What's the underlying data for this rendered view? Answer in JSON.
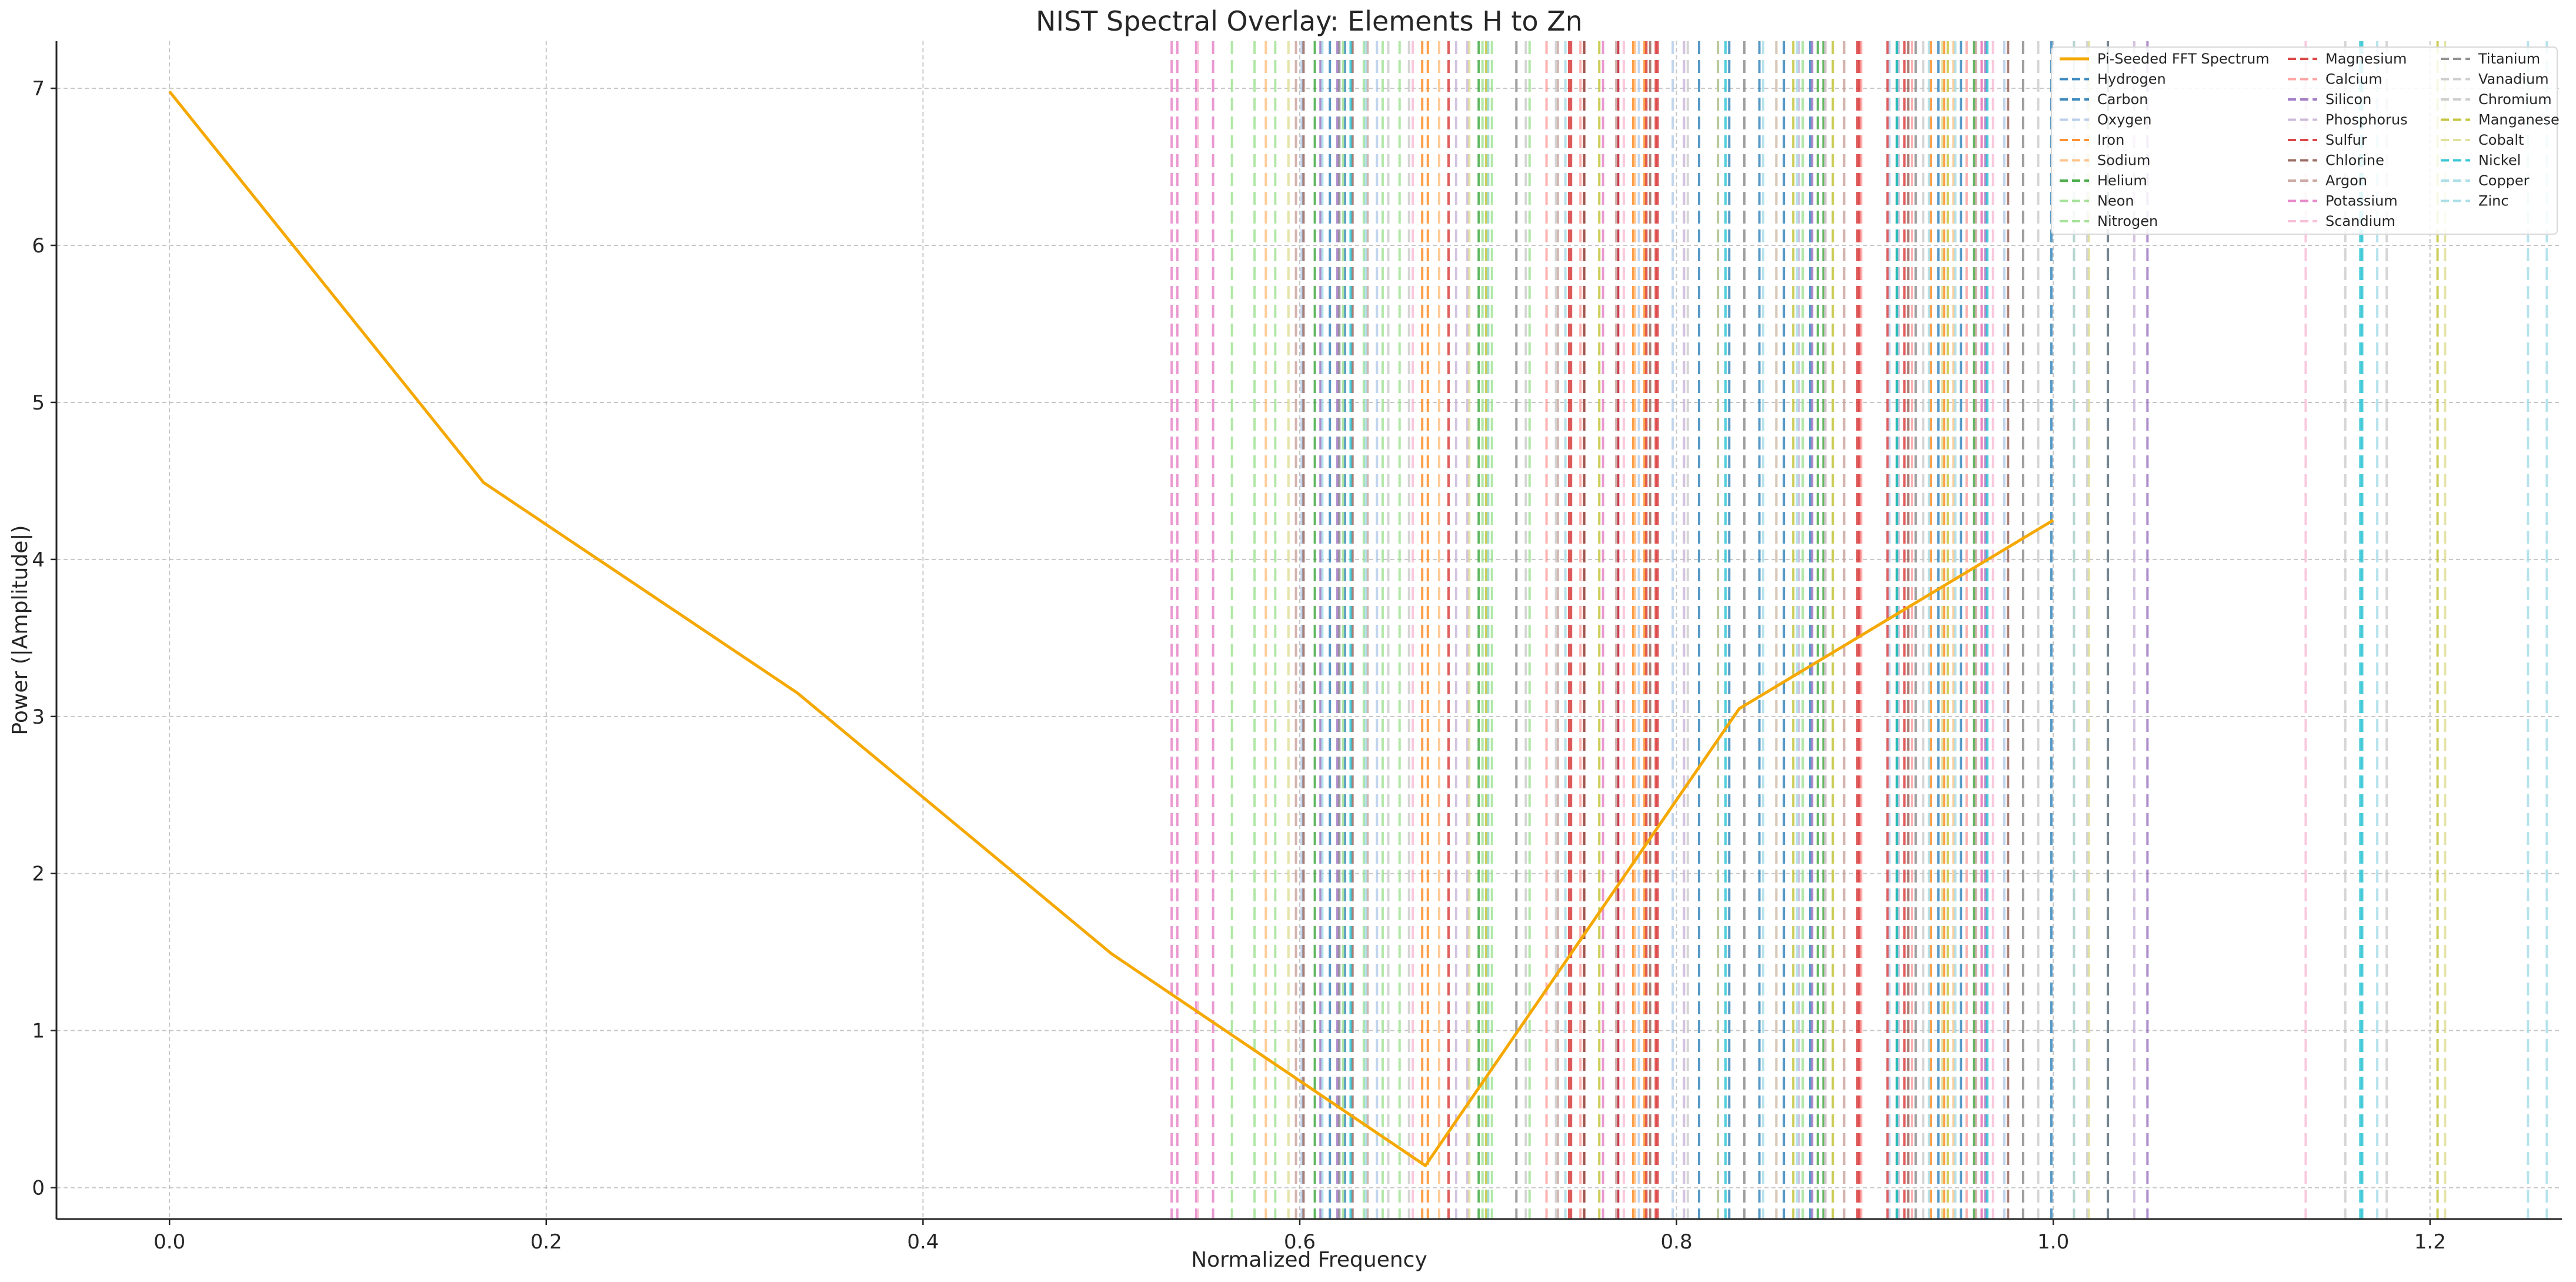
{
  "chart_data": {
    "type": "line",
    "title": "NIST Spectral Overlay: Elements H to Zn",
    "xlabel": "Normalized Frequency",
    "ylabel": "Power (|Amplitude|)",
    "xlim": [
      -0.06,
      1.27
    ],
    "ylim": [
      -0.2,
      7.3
    ],
    "xticks": [
      "0.0",
      "0.2",
      "0.4",
      "0.6",
      "0.8",
      "1.0",
      "1.2"
    ],
    "yticks": [
      "0",
      "1",
      "2",
      "3",
      "4",
      "5",
      "6",
      "7"
    ],
    "grid": true,
    "legend_position": "top-right",
    "spectrum": {
      "name": "Pi-Seeded FFT Spectrum",
      "color": "#f5a800",
      "x": [
        0.0,
        0.1667,
        0.3333,
        0.5,
        0.6667,
        0.8333,
        1.0
      ],
      "y": [
        6.98,
        4.49,
        3.15,
        1.49,
        0.14,
        3.05,
        4.25
      ]
    },
    "elements": [
      {
        "name": "Hydrogen",
        "color": "#1f77b4",
        "lines": [
          0.624,
          0.812,
          0.844,
          0.857,
          0.951,
          0.999
        ]
      },
      {
        "name": "Carbon",
        "color": "#1f77b4",
        "lines": [
          0.616,
          0.822,
          0.828,
          0.871,
          0.939,
          1.029
        ]
      },
      {
        "name": "Oxygen",
        "color": "#aec7e8",
        "lines": [
          0.601,
          0.641,
          0.78,
          0.798,
          0.913,
          0.974
        ]
      },
      {
        "name": "Iron",
        "color": "#ff7f0e",
        "lines": [
          0.665,
          0.668,
          0.777,
          0.783,
          0.935,
          0.942
        ]
      },
      {
        "name": "Sodium",
        "color": "#ffbb78",
        "lines": [
          0.582,
          0.674,
          0.778,
          0.853,
          0.947,
          1.011
        ]
      },
      {
        "name": "Helium",
        "color": "#2ca02c",
        "lines": [
          0.608,
          0.695,
          0.875,
          0.878,
          0.917,
          0.958
        ]
      },
      {
        "name": "Neon",
        "color": "#98df8a",
        "lines": [
          0.564,
          0.587,
          0.634,
          0.697,
          0.7,
          0.722
        ]
      },
      {
        "name": "Nitrogen",
        "color": "#98df8a",
        "lines": [
          0.576,
          0.623,
          0.644,
          0.653,
          0.702,
          0.867
        ]
      },
      {
        "name": "Magnesium",
        "color": "#d62728",
        "lines": [
          0.743,
          0.751,
          0.784,
          0.789,
          0.896,
          0.912
        ]
      },
      {
        "name": "Calcium",
        "color": "#ff9896",
        "lines": [
          0.731,
          0.749,
          0.898,
          0.925,
          0.954,
          0.962
        ]
      },
      {
        "name": "Silicon",
        "color": "#9467bd",
        "lines": [
          0.611,
          0.62,
          0.769,
          0.872,
          0.964,
          1.05
        ]
      },
      {
        "name": "Phosphorus",
        "color": "#c5b0d5",
        "lines": [
          0.683,
          0.689,
          0.804,
          0.865,
          0.918,
          1.043
        ]
      },
      {
        "name": "Sulfur",
        "color": "#d62728",
        "lines": [
          0.679,
          0.744,
          0.769,
          0.79,
          0.897,
          0.921
        ]
      },
      {
        "name": "Chlorine",
        "color": "#8c564b",
        "lines": [
          0.602,
          0.628,
          0.751,
          0.786,
          0.923,
          0.976
        ]
      },
      {
        "name": "Argon",
        "color": "#c49c94",
        "lines": [
          0.598,
          0.636,
          0.737,
          0.768,
          0.889,
          0.959
        ]
      },
      {
        "name": "Potassium",
        "color": "#e377c2",
        "lines": [
          0.532,
          0.535,
          0.545,
          0.554,
          0.761,
          0.962
        ]
      },
      {
        "name": "Scandium",
        "color": "#f7b6d2",
        "lines": [
          0.546,
          0.66,
          0.772,
          0.879,
          0.968,
          1.134
        ]
      },
      {
        "name": "Titanium",
        "color": "#7f7f7f",
        "lines": [
          0.621,
          0.715,
          0.836,
          0.927,
          0.984,
          1.029
        ]
      },
      {
        "name": "Vanadium",
        "color": "#c7c7c7",
        "lines": [
          0.647,
          0.72,
          0.806,
          0.879,
          0.992,
          1.155
        ]
      },
      {
        "name": "Chromium",
        "color": "#c7c7c7",
        "lines": [
          0.658,
          0.736,
          0.853,
          0.931,
          1.018,
          1.177
        ]
      },
      {
        "name": "Manganese",
        "color": "#bcbd22",
        "lines": [
          0.699,
          0.759,
          0.862,
          0.883,
          0.944,
          1.204
        ]
      },
      {
        "name": "Cobalt",
        "color": "#dbdb8d",
        "lines": [
          0.594,
          0.69,
          0.822,
          0.941,
          1.019,
          1.208
        ]
      },
      {
        "name": "Nickel",
        "color": "#17becf",
        "lines": [
          0.627,
          0.826,
          0.917,
          0.965,
          1.163,
          1.164
        ]
      },
      {
        "name": "Copper",
        "color": "#9edae5",
        "lines": [
          0.612,
          0.7,
          0.864,
          0.948,
          1.011,
          1.252
        ]
      },
      {
        "name": "Zinc",
        "color": "#9edae5",
        "lines": [
          0.635,
          0.741,
          0.846,
          0.934,
          1.172,
          1.262
        ]
      }
    ]
  }
}
